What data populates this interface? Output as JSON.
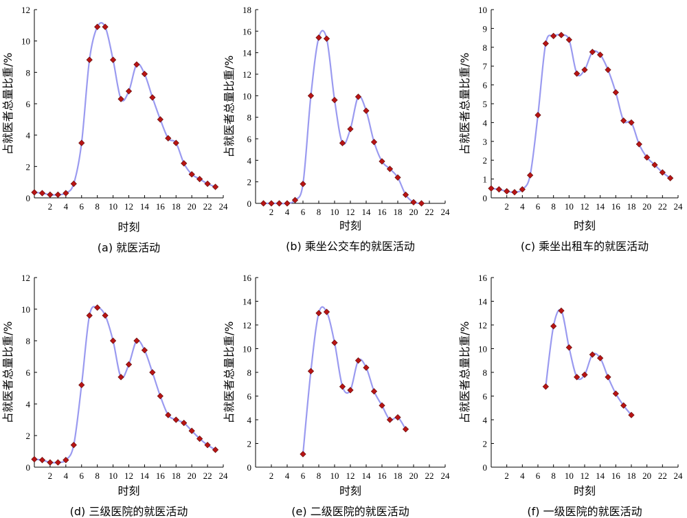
{
  "chart_data": [
    {
      "id": "a",
      "type": "line",
      "caption": "(a) 就医活动",
      "xlabel": "时刻",
      "ylabel": "占就医者总量比重/%",
      "xlim": [
        0,
        24
      ],
      "ylim": [
        0,
        12
      ],
      "xticks": [
        2,
        4,
        6,
        8,
        10,
        12,
        14,
        16,
        18,
        20,
        22,
        24
      ],
      "yticks": [
        0,
        2,
        4,
        6,
        8,
        10,
        12
      ],
      "x": [
        0,
        1,
        2,
        3,
        4,
        5,
        6,
        7,
        8,
        9,
        10,
        11,
        12,
        13,
        14,
        15,
        16,
        17,
        18,
        19,
        20,
        21,
        22,
        23
      ],
      "values": [
        0.35,
        0.3,
        0.2,
        0.2,
        0.3,
        0.9,
        3.5,
        8.8,
        10.9,
        10.9,
        8.8,
        6.3,
        6.8,
        8.5,
        7.9,
        6.4,
        5.0,
        3.8,
        3.5,
        2.2,
        1.5,
        1.2,
        0.9,
        0.7
      ]
    },
    {
      "id": "b",
      "type": "line",
      "caption": "(b) 乘坐公交车的就医活动",
      "xlabel": "时刻",
      "ylabel": "占就医者总量比重/%",
      "xlim": [
        0,
        24
      ],
      "ylim": [
        0,
        18
      ],
      "xticks": [
        2,
        4,
        6,
        8,
        10,
        12,
        14,
        16,
        18,
        20,
        22,
        24
      ],
      "yticks": [
        0,
        2,
        4,
        6,
        8,
        10,
        12,
        14,
        16,
        18
      ],
      "x": [
        1,
        2,
        3,
        4,
        5,
        6,
        7,
        8,
        9,
        10,
        11,
        12,
        13,
        14,
        15,
        16,
        17,
        18,
        19,
        20,
        21
      ],
      "values": [
        0.0,
        0.0,
        0.0,
        0.0,
        0.3,
        1.8,
        10.0,
        15.4,
        15.3,
        9.6,
        5.6,
        6.9,
        9.9,
        8.6,
        5.7,
        3.9,
        3.2,
        2.4,
        0.8,
        0.1,
        0.0
      ]
    },
    {
      "id": "c",
      "type": "line",
      "caption": "(c) 乘坐出租车的就医活动",
      "xlabel": "时刻",
      "ylabel": "占就医者总量比重/%",
      "xlim": [
        0,
        24
      ],
      "ylim": [
        0,
        10
      ],
      "xticks": [
        2,
        4,
        6,
        8,
        10,
        12,
        14,
        16,
        18,
        20,
        22,
        24
      ],
      "yticks": [
        0,
        1,
        2,
        3,
        4,
        5,
        6,
        7,
        8,
        9,
        10
      ],
      "x": [
        0,
        1,
        2,
        3,
        4,
        5,
        6,
        7,
        8,
        9,
        10,
        11,
        12,
        13,
        14,
        15,
        16,
        17,
        18,
        19,
        20,
        21,
        22,
        23
      ],
      "values": [
        0.5,
        0.45,
        0.35,
        0.3,
        0.45,
        1.2,
        4.4,
        8.2,
        8.6,
        8.65,
        8.4,
        6.6,
        6.8,
        7.75,
        7.6,
        6.8,
        5.6,
        4.1,
        4.0,
        2.85,
        2.15,
        1.75,
        1.35,
        1.05
      ]
    },
    {
      "id": "d",
      "type": "line",
      "caption": "(d) 三级医院的就医活动",
      "xlabel": "时刻",
      "ylabel": "占就医者总量比重/%",
      "xlim": [
        0,
        24
      ],
      "ylim": [
        0,
        12
      ],
      "xticks": [
        2,
        4,
        6,
        8,
        10,
        12,
        14,
        16,
        18,
        20,
        22,
        24
      ],
      "yticks": [
        0,
        2,
        4,
        6,
        8,
        10,
        12
      ],
      "x": [
        0,
        1,
        2,
        3,
        4,
        5,
        6,
        7,
        8,
        9,
        10,
        11,
        12,
        13,
        14,
        15,
        16,
        17,
        18,
        19,
        20,
        21,
        22,
        23
      ],
      "values": [
        0.5,
        0.45,
        0.3,
        0.3,
        0.45,
        1.4,
        5.2,
        9.6,
        10.1,
        9.6,
        8.0,
        5.7,
        6.5,
        8.0,
        7.4,
        6.0,
        4.5,
        3.3,
        3.0,
        2.8,
        2.3,
        1.8,
        1.4,
        1.1
      ]
    },
    {
      "id": "e",
      "type": "line",
      "caption": "(e) 二级医院的就医活动",
      "xlabel": "时刻",
      "ylabel": "占就医者总量比重/%",
      "xlim": [
        0,
        24
      ],
      "ylim": [
        0,
        16
      ],
      "xticks": [
        2,
        4,
        6,
        8,
        10,
        12,
        14,
        16,
        18,
        20,
        22,
        24
      ],
      "yticks": [
        0,
        2,
        4,
        6,
        8,
        10,
        12,
        14,
        16
      ],
      "x": [
        6,
        7,
        8,
        9,
        10,
        11,
        12,
        13,
        14,
        15,
        16,
        17,
        18,
        19
      ],
      "values": [
        1.1,
        8.1,
        13.0,
        13.1,
        10.5,
        6.8,
        6.5,
        9.0,
        8.4,
        6.4,
        5.2,
        4.0,
        4.2,
        3.2
      ]
    },
    {
      "id": "f",
      "type": "line",
      "caption": "(f) 一级医院的就医活动",
      "xlabel": "时刻",
      "ylabel": "占就医者总量比重/%",
      "xlim": [
        0,
        24
      ],
      "ylim": [
        0,
        16
      ],
      "xticks": [
        2,
        4,
        6,
        8,
        10,
        12,
        14,
        16,
        18,
        20,
        22,
        24
      ],
      "yticks": [
        0,
        2,
        4,
        6,
        8,
        10,
        12,
        14,
        16
      ],
      "x": [
        7,
        8,
        9,
        10,
        11,
        12,
        13,
        14,
        15,
        16,
        17,
        18
      ],
      "values": [
        6.8,
        11.9,
        13.2,
        10.1,
        7.6,
        7.8,
        9.5,
        9.2,
        7.6,
        6.2,
        5.2,
        4.4
      ]
    }
  ],
  "colors": {
    "line": "#9a9af0",
    "marker": "#b81414",
    "axis": "#000000"
  }
}
